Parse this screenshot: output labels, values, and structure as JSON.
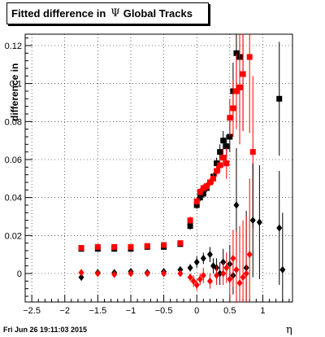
{
  "chart_data": {
    "type": "scatter",
    "title_prefix": "Fitted difference in",
    "title_symbol": "Ψ",
    "title_suffix": "Global Tracks",
    "xlabel": "η",
    "ylabel": "difference in",
    "timestamp": "Fri Jun 26 19:11:03 2015",
    "xlim": [
      -2.6,
      1.45
    ],
    "ylim": [
      -0.015,
      0.126
    ],
    "xticks": [
      -2.5,
      -2,
      -1.5,
      -1,
      -0.5,
      0,
      0.5,
      1
    ],
    "xtick_labels": [
      "−2.5",
      "−2",
      "−1.5",
      "−1",
      "−0.5",
      "0",
      "0.5",
      "1"
    ],
    "yticks": [
      0,
      0.02,
      0.04,
      0.06,
      0.08,
      0.1,
      0.12
    ],
    "ytick_labels": [
      "0",
      "0.02",
      "0.04",
      "0.06",
      "0.08",
      "0.1",
      "0.12"
    ],
    "grid": true,
    "colors": {
      "series_black": "#000000",
      "series_red": "#ff0000"
    },
    "series": [
      {
        "color": "black",
        "marker": "square",
        "x": [
          -1.75,
          -1.5,
          -1.25,
          -1.0,
          -0.75,
          -0.5,
          -0.25,
          -0.1,
          0.0,
          0.05,
          0.1,
          0.15,
          0.2,
          0.25,
          0.3,
          0.35,
          0.4,
          0.45,
          0.5,
          0.55,
          0.6,
          0.65,
          0.7,
          1.25
        ],
        "y": [
          0.013,
          0.013,
          0.013,
          0.013,
          0.014,
          0.014,
          0.0155,
          0.025,
          0.036,
          0.04,
          0.042,
          0.045,
          0.048,
          0.051,
          0.058,
          0.064,
          0.07,
          0.067,
          0.072,
          0.096,
          0.116,
          0.114,
          0.105,
          0.092
        ],
        "err": [
          0.001,
          0.001,
          0.001,
          0.001,
          0.001,
          0.001,
          0.001,
          0.002,
          0.002,
          0.002,
          0.002,
          0.002,
          0.002,
          0.002,
          0.003,
          0.004,
          0.005,
          0.006,
          0.008,
          0.015,
          0.02,
          0.02,
          0.03,
          0.03
        ]
      },
      {
        "color": "red",
        "marker": "square",
        "x": [
          -1.75,
          -1.5,
          -1.25,
          -1.0,
          -0.75,
          -0.5,
          -0.25,
          -0.1,
          0.0,
          0.05,
          0.1,
          0.15,
          0.2,
          0.25,
          0.3,
          0.35,
          0.4,
          0.45,
          0.5,
          0.55,
          0.6,
          0.65,
          0.7,
          0.8,
          0.85
        ],
        "y": [
          0.0135,
          0.014,
          0.014,
          0.014,
          0.0145,
          0.015,
          0.016,
          0.028,
          0.038,
          0.043,
          0.045,
          0.046,
          0.048,
          0.05,
          0.054,
          0.057,
          0.061,
          0.058,
          0.082,
          0.087,
          0.096,
          0.098,
          0.105,
          0.114,
          0.064
        ],
        "err": [
          0.001,
          0.001,
          0.001,
          0.001,
          0.001,
          0.001,
          0.001,
          0.002,
          0.002,
          0.002,
          0.002,
          0.002,
          0.002,
          0.003,
          0.003,
          0.004,
          0.005,
          0.008,
          0.01,
          0.015,
          0.02,
          0.03,
          0.03,
          0.04,
          0.04
        ]
      },
      {
        "color": "black",
        "marker": "diamond",
        "x": [
          -1.75,
          -1.5,
          -1.25,
          -1.0,
          -0.75,
          -0.5,
          -0.25,
          -0.1,
          0.0,
          0.1,
          0.2,
          0.25,
          0.3,
          0.35,
          0.4,
          0.5,
          0.55,
          0.6,
          0.75,
          0.85,
          0.95,
          1.25,
          1.3
        ],
        "y": [
          -0.002,
          0.0005,
          0.0005,
          0.001,
          0.0005,
          0.001,
          0.002,
          0.003,
          0.006,
          0.008,
          0.01,
          0.004,
          0.003,
          0.0,
          0.006,
          0.005,
          -0.001,
          0.036,
          0.003,
          0.028,
          0.027,
          0.024,
          0.002
        ],
        "err": [
          0.001,
          0.001,
          0.001,
          0.001,
          0.001,
          0.001,
          0.001,
          0.002,
          0.003,
          0.003,
          0.004,
          0.004,
          0.005,
          0.006,
          0.007,
          0.01,
          0.01,
          0.03,
          0.03,
          0.03,
          0.03,
          0.03,
          0.03
        ]
      },
      {
        "color": "red",
        "marker": "diamond",
        "x": [
          -1.75,
          -1.5,
          -1.25,
          -1.0,
          -0.75,
          -0.5,
          -0.25,
          -0.1,
          -0.05,
          0.0,
          0.05,
          0.1,
          0.2,
          0.3,
          0.4,
          0.45,
          0.5,
          0.55,
          0.6,
          0.65,
          0.7,
          0.75,
          0.8
        ],
        "y": [
          0.0005,
          0.0,
          -0.0005,
          0.0,
          0.0,
          0.0,
          0.0,
          -0.002,
          -0.004,
          -0.006,
          -0.003,
          -0.001,
          -0.004,
          -0.001,
          0.0,
          0.003,
          -0.003,
          0.008,
          0.002,
          -0.005,
          -0.002,
          0.0,
          0.01
        ],
        "err": [
          0.001,
          0.001,
          0.001,
          0.001,
          0.001,
          0.001,
          0.001,
          0.002,
          0.003,
          0.003,
          0.003,
          0.004,
          0.004,
          0.005,
          0.006,
          0.008,
          0.01,
          0.015,
          0.02,
          0.03,
          0.03,
          0.03,
          0.04
        ]
      }
    ]
  }
}
